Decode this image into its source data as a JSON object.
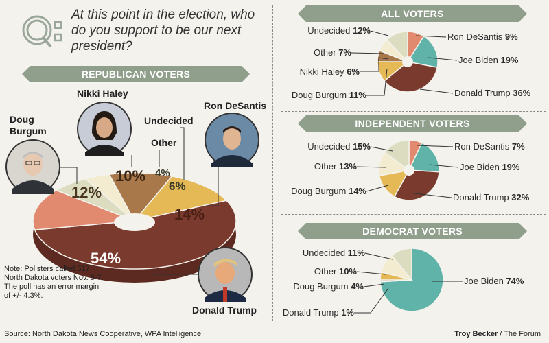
{
  "question": "At this point in the election, who do you support to be our next president?",
  "colors": {
    "trump": "#7a3a2e",
    "biden": "#5fb3a8",
    "desantis": "#e28a70",
    "burgum": "#e5b955",
    "haley": "#a8784a",
    "other": "#f3ecd0",
    "undecided": "#dcdcc0",
    "ribbon": "#8f9f8b"
  },
  "republican": {
    "title": "REPUBLICAN VOTERS",
    "labels": {
      "burgum": "Doug Burgum",
      "haley": "Nikki Haley",
      "other": "Other",
      "undecided": "Undecided",
      "desantis": "Ron DeSantis",
      "trump": "Donald Trump"
    },
    "pcts": {
      "burgum": "12%",
      "haley": "10%",
      "other": "4%",
      "undecided": "6%",
      "desantis": "14%",
      "trump": "54%"
    }
  },
  "all": {
    "title": "ALL VOTERS",
    "labels": {
      "undecided": "Undecided",
      "undecided_pct": "12%",
      "other": "Other",
      "other_pct": "7%",
      "haley": "Nikki Haley",
      "haley_pct": "6%",
      "burgum": "Doug Burgum",
      "burgum_pct": "11%",
      "desantis": "Ron DeSantis",
      "desantis_pct": "9%",
      "biden": "Joe Biden",
      "biden_pct": "19%",
      "trump": "Donald Trump",
      "trump_pct": "36%"
    }
  },
  "independent": {
    "title": "INDEPENDENT VOTERS",
    "labels": {
      "undecided": "Undecided",
      "undecided_pct": "15%",
      "other": "Other",
      "other_pct": "13%",
      "burgum": "Doug Burgum",
      "burgum_pct": "14%",
      "desantis": "Ron DeSantis",
      "desantis_pct": "7%",
      "biden": "Joe Biden",
      "biden_pct": "19%",
      "trump": "Donald Trump",
      "trump_pct": "32%"
    }
  },
  "democrat": {
    "title": "DEMOCRAT VOTERS",
    "labels": {
      "undecided": "Undecided",
      "undecided_pct": "11%",
      "other": "Other",
      "other_pct": "10%",
      "burgum": "Doug Burgum",
      "burgum_pct": "4%",
      "trump": "Donald Trump",
      "trump_pct": "1%",
      "biden": "Joe Biden",
      "biden_pct": "74%"
    }
  },
  "note": "Note: Pollsters called 517 North Dakota voters Nov. 5-7. The poll has an error margin of +/- 4.3%.",
  "source": "Source: North Dakota News Cooperative, WPA Intelligence",
  "credit_name": "Troy Becker",
  "credit_org": " / The Forum",
  "chart_data": [
    {
      "type": "pie",
      "title": "REPUBLICAN VOTERS",
      "categories": [
        "Donald Trump",
        "Ron DeSantis",
        "Undecided",
        "Other",
        "Nikki Haley",
        "Doug Burgum"
      ],
      "values": [
        54,
        14,
        6,
        4,
        10,
        12
      ]
    },
    {
      "type": "pie",
      "title": "ALL VOTERS",
      "categories": [
        "Ron DeSantis",
        "Joe Biden",
        "Donald Trump",
        "Doug Burgum",
        "Nikki Haley",
        "Other",
        "Undecided"
      ],
      "values": [
        9,
        19,
        36,
        11,
        6,
        7,
        12
      ]
    },
    {
      "type": "pie",
      "title": "INDEPENDENT VOTERS",
      "categories": [
        "Ron DeSantis",
        "Joe Biden",
        "Donald Trump",
        "Doug Burgum",
        "Other",
        "Undecided"
      ],
      "values": [
        7,
        19,
        32,
        14,
        13,
        15
      ]
    },
    {
      "type": "pie",
      "title": "DEMOCRAT VOTERS",
      "categories": [
        "Joe Biden",
        "Donald Trump",
        "Doug Burgum",
        "Other",
        "Undecided"
      ],
      "values": [
        74,
        1,
        4,
        10,
        11
      ]
    }
  ]
}
